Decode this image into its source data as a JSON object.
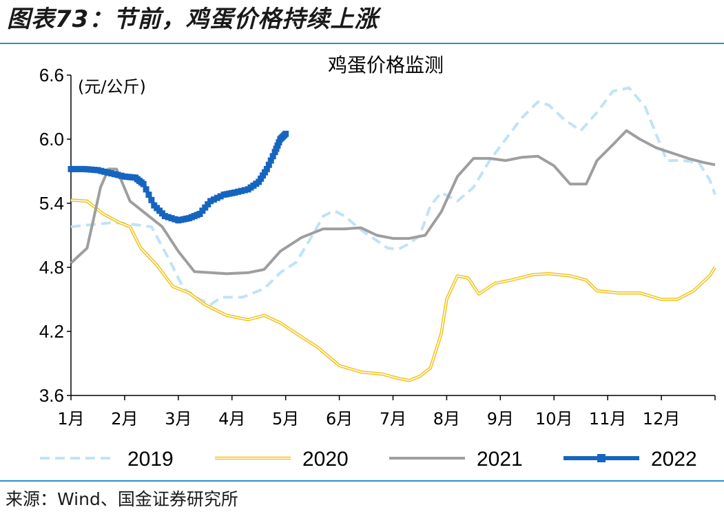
{
  "figure_title": "图表73：节前，鸡蛋价格持续上涨",
  "source_note": "来源：Wind、国金证券研究所",
  "chart_data": {
    "type": "line",
    "title": "鸡蛋价格监测",
    "unit": "(元/公斤)",
    "ylim": [
      3.6,
      6.6
    ],
    "yticks": [
      3.6,
      4.2,
      4.8,
      5.4,
      6.0,
      6.6
    ],
    "ytick_labels": [
      "3.6",
      "4.2",
      "4.8",
      "5.4",
      "6.0",
      "6.6"
    ],
    "xlim": [
      1,
      13
    ],
    "month_labels": [
      "1月",
      "2月",
      "3月",
      "4月",
      "5月",
      "6月",
      "7月",
      "8月",
      "9月",
      "10月",
      "11月",
      "12月"
    ],
    "legend_position": "bottom",
    "series": [
      {
        "name": "2019",
        "color": "#bfe3f7",
        "style": "dashed",
        "points": [
          [
            1.0,
            5.18
          ],
          [
            1.4,
            5.2
          ],
          [
            1.8,
            5.22
          ],
          [
            2.2,
            5.2
          ],
          [
            2.5,
            5.18
          ],
          [
            2.8,
            4.9
          ],
          [
            3.1,
            4.6
          ],
          [
            3.4,
            4.5
          ],
          [
            3.6,
            4.45
          ],
          [
            3.8,
            4.52
          ],
          [
            4.2,
            4.52
          ],
          [
            4.6,
            4.6
          ],
          [
            4.9,
            4.75
          ],
          [
            5.2,
            4.85
          ],
          [
            5.5,
            5.1
          ],
          [
            5.7,
            5.28
          ],
          [
            5.9,
            5.33
          ],
          [
            6.1,
            5.28
          ],
          [
            6.4,
            5.15
          ],
          [
            6.7,
            5.05
          ],
          [
            6.9,
            4.98
          ],
          [
            7.1,
            4.97
          ],
          [
            7.3,
            5.02
          ],
          [
            7.5,
            5.1
          ],
          [
            7.7,
            5.38
          ],
          [
            7.9,
            5.5
          ],
          [
            8.2,
            5.42
          ],
          [
            8.5,
            5.55
          ],
          [
            8.8,
            5.8
          ],
          [
            9.1,
            6.0
          ],
          [
            9.4,
            6.2
          ],
          [
            9.7,
            6.35
          ],
          [
            9.9,
            6.32
          ],
          [
            10.2,
            6.18
          ],
          [
            10.5,
            6.08
          ],
          [
            10.8,
            6.25
          ],
          [
            11.1,
            6.45
          ],
          [
            11.4,
            6.48
          ],
          [
            11.7,
            6.3
          ],
          [
            11.9,
            6.05
          ],
          [
            12.1,
            5.8
          ],
          [
            12.4,
            5.8
          ],
          [
            12.7,
            5.78
          ],
          [
            12.9,
            5.62
          ],
          [
            13.0,
            5.48
          ]
        ]
      },
      {
        "name": "2020",
        "color": "#f2c218",
        "style": "double",
        "points": [
          [
            1.0,
            5.43
          ],
          [
            1.3,
            5.42
          ],
          [
            1.6,
            5.3
          ],
          [
            1.9,
            5.22
          ],
          [
            2.1,
            5.18
          ],
          [
            2.3,
            4.98
          ],
          [
            2.6,
            4.82
          ],
          [
            2.9,
            4.62
          ],
          [
            3.2,
            4.56
          ],
          [
            3.5,
            4.45
          ],
          [
            3.9,
            4.35
          ],
          [
            4.3,
            4.31
          ],
          [
            4.6,
            4.35
          ],
          [
            4.9,
            4.28
          ],
          [
            5.2,
            4.18
          ],
          [
            5.6,
            4.05
          ],
          [
            6.0,
            3.88
          ],
          [
            6.4,
            3.82
          ],
          [
            6.8,
            3.8
          ],
          [
            7.1,
            3.76
          ],
          [
            7.3,
            3.74
          ],
          [
            7.5,
            3.78
          ],
          [
            7.7,
            3.86
          ],
          [
            7.9,
            4.18
          ],
          [
            8.0,
            4.5
          ],
          [
            8.2,
            4.72
          ],
          [
            8.4,
            4.7
          ],
          [
            8.6,
            4.55
          ],
          [
            8.9,
            4.65
          ],
          [
            9.2,
            4.68
          ],
          [
            9.6,
            4.73
          ],
          [
            9.9,
            4.74
          ],
          [
            10.3,
            4.72
          ],
          [
            10.6,
            4.68
          ],
          [
            10.8,
            4.58
          ],
          [
            11.2,
            4.56
          ],
          [
            11.6,
            4.56
          ],
          [
            12.0,
            4.5
          ],
          [
            12.3,
            4.5
          ],
          [
            12.6,
            4.58
          ],
          [
            12.9,
            4.72
          ],
          [
            13.0,
            4.8
          ]
        ]
      },
      {
        "name": "2021",
        "color": "#9e9e9e",
        "style": "solid",
        "points": [
          [
            1.0,
            4.84
          ],
          [
            1.3,
            4.98
          ],
          [
            1.45,
            5.32
          ],
          [
            1.55,
            5.55
          ],
          [
            1.7,
            5.72
          ],
          [
            1.85,
            5.72
          ],
          [
            2.1,
            5.42
          ],
          [
            2.4,
            5.3
          ],
          [
            2.7,
            5.18
          ],
          [
            3.0,
            4.95
          ],
          [
            3.3,
            4.76
          ],
          [
            3.6,
            4.75
          ],
          [
            3.9,
            4.74
          ],
          [
            4.3,
            4.75
          ],
          [
            4.6,
            4.78
          ],
          [
            4.9,
            4.95
          ],
          [
            5.3,
            5.08
          ],
          [
            5.7,
            5.16
          ],
          [
            6.1,
            5.16
          ],
          [
            6.4,
            5.17
          ],
          [
            6.7,
            5.1
          ],
          [
            7.0,
            5.07
          ],
          [
            7.3,
            5.07
          ],
          [
            7.6,
            5.1
          ],
          [
            7.9,
            5.32
          ],
          [
            8.2,
            5.65
          ],
          [
            8.5,
            5.82
          ],
          [
            8.8,
            5.82
          ],
          [
            9.1,
            5.8
          ],
          [
            9.4,
            5.83
          ],
          [
            9.7,
            5.84
          ],
          [
            10.0,
            5.75
          ],
          [
            10.3,
            5.58
          ],
          [
            10.6,
            5.58
          ],
          [
            10.8,
            5.8
          ],
          [
            11.1,
            5.95
          ],
          [
            11.35,
            6.08
          ],
          [
            11.6,
            6.0
          ],
          [
            11.9,
            5.92
          ],
          [
            12.2,
            5.87
          ],
          [
            12.5,
            5.82
          ],
          [
            12.8,
            5.78
          ],
          [
            13.0,
            5.76
          ]
        ]
      },
      {
        "name": "2022",
        "color": "#1565c0",
        "style": "marker",
        "points": [
          [
            1.0,
            5.72
          ],
          [
            1.25,
            5.72
          ],
          [
            1.5,
            5.71
          ],
          [
            1.75,
            5.68
          ],
          [
            2.0,
            5.65
          ],
          [
            2.2,
            5.64
          ],
          [
            2.35,
            5.58
          ],
          [
            2.55,
            5.38
          ],
          [
            2.75,
            5.28
          ],
          [
            3.0,
            5.24
          ],
          [
            3.2,
            5.26
          ],
          [
            3.4,
            5.3
          ],
          [
            3.6,
            5.42
          ],
          [
            3.85,
            5.48
          ],
          [
            4.05,
            5.5
          ],
          [
            4.3,
            5.53
          ],
          [
            4.5,
            5.6
          ],
          [
            4.65,
            5.72
          ],
          [
            4.8,
            5.88
          ],
          [
            4.9,
            6.0
          ],
          [
            5.0,
            6.05
          ]
        ]
      }
    ]
  }
}
